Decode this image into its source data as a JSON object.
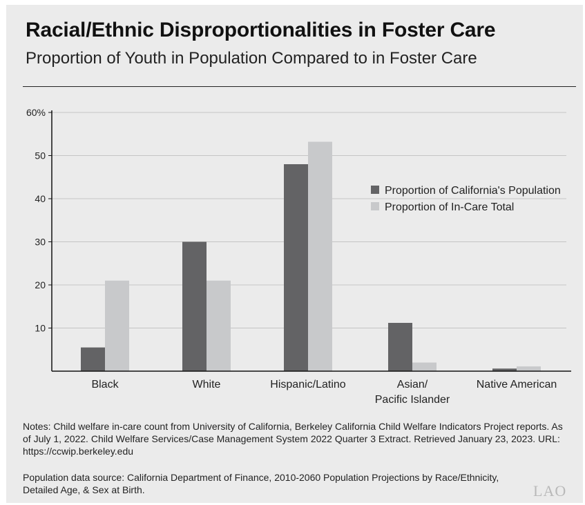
{
  "title": "Racial/Ethnic Disproportionalities in Foster Care",
  "subtitle": "Proportion of Youth in Population Compared to in Foster Care",
  "notes": "Notes: Child welfare in-care count from University of California, Berkeley California Child Welfare Indicators Project reports. As of July 1, 2022. Child Welfare Services/Case Management System 2022 Quarter 3 Extract. Retrieved January 23, 2023. URL: https://ccwip.berkeley.edu",
  "source": "Population data source: California Department of Finance, 2010-2060 Population Projections by Race/Ethnicity, Detailed Age, & Sex at Birth.",
  "logo": "LAO",
  "chart_data": {
    "type": "bar",
    "categories": [
      [
        "Black"
      ],
      [
        "White"
      ],
      [
        "Hispanic/Latino"
      ],
      [
        "Asian/",
        "Pacific Islander"
      ],
      [
        "Native American"
      ]
    ],
    "series": [
      {
        "name": "Proportion of California's Population",
        "color": "#636365",
        "values": [
          5.5,
          30,
          48,
          11.2,
          0.6
        ]
      },
      {
        "name": "Proportion of In-Care Total",
        "color": "#c8c9cb",
        "values": [
          21,
          21,
          53.2,
          2,
          1.1
        ]
      }
    ],
    "yticks": [
      10,
      20,
      30,
      40,
      50,
      60
    ],
    "ytick_labels": [
      "10",
      "20",
      "30",
      "40",
      "50",
      "60%"
    ],
    "ylim": [
      0,
      60
    ],
    "grid": true,
    "legend_position": "right"
  }
}
